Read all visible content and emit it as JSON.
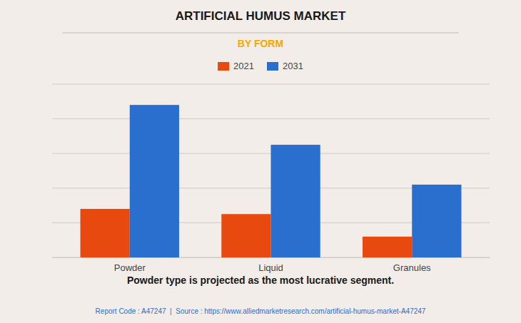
{
  "chart_data": {
    "type": "bar",
    "title": "ARTIFICIAL HUMUS MARKET",
    "subtitle": "BY FORM",
    "categories": [
      "Powder",
      "Liquid",
      "Granules"
    ],
    "series": [
      {
        "name": "2021",
        "color": "#e8490f",
        "values": [
          28,
          25,
          12
        ]
      },
      {
        "name": "2031",
        "color": "#2b6fce",
        "values": [
          88,
          65,
          42
        ]
      }
    ],
    "ylim": [
      0,
      100
    ],
    "yticks": [
      0,
      20,
      40,
      60,
      80,
      100
    ],
    "grid": true,
    "legend": "top",
    "tick_labels": "x",
    "annotation": "Powder type is projected as the most lucrative segment.",
    "footer": "Report Code : A47247  |  Source : https://www.alliedmarketresearch.com/artificial-humus-market-A47247"
  }
}
